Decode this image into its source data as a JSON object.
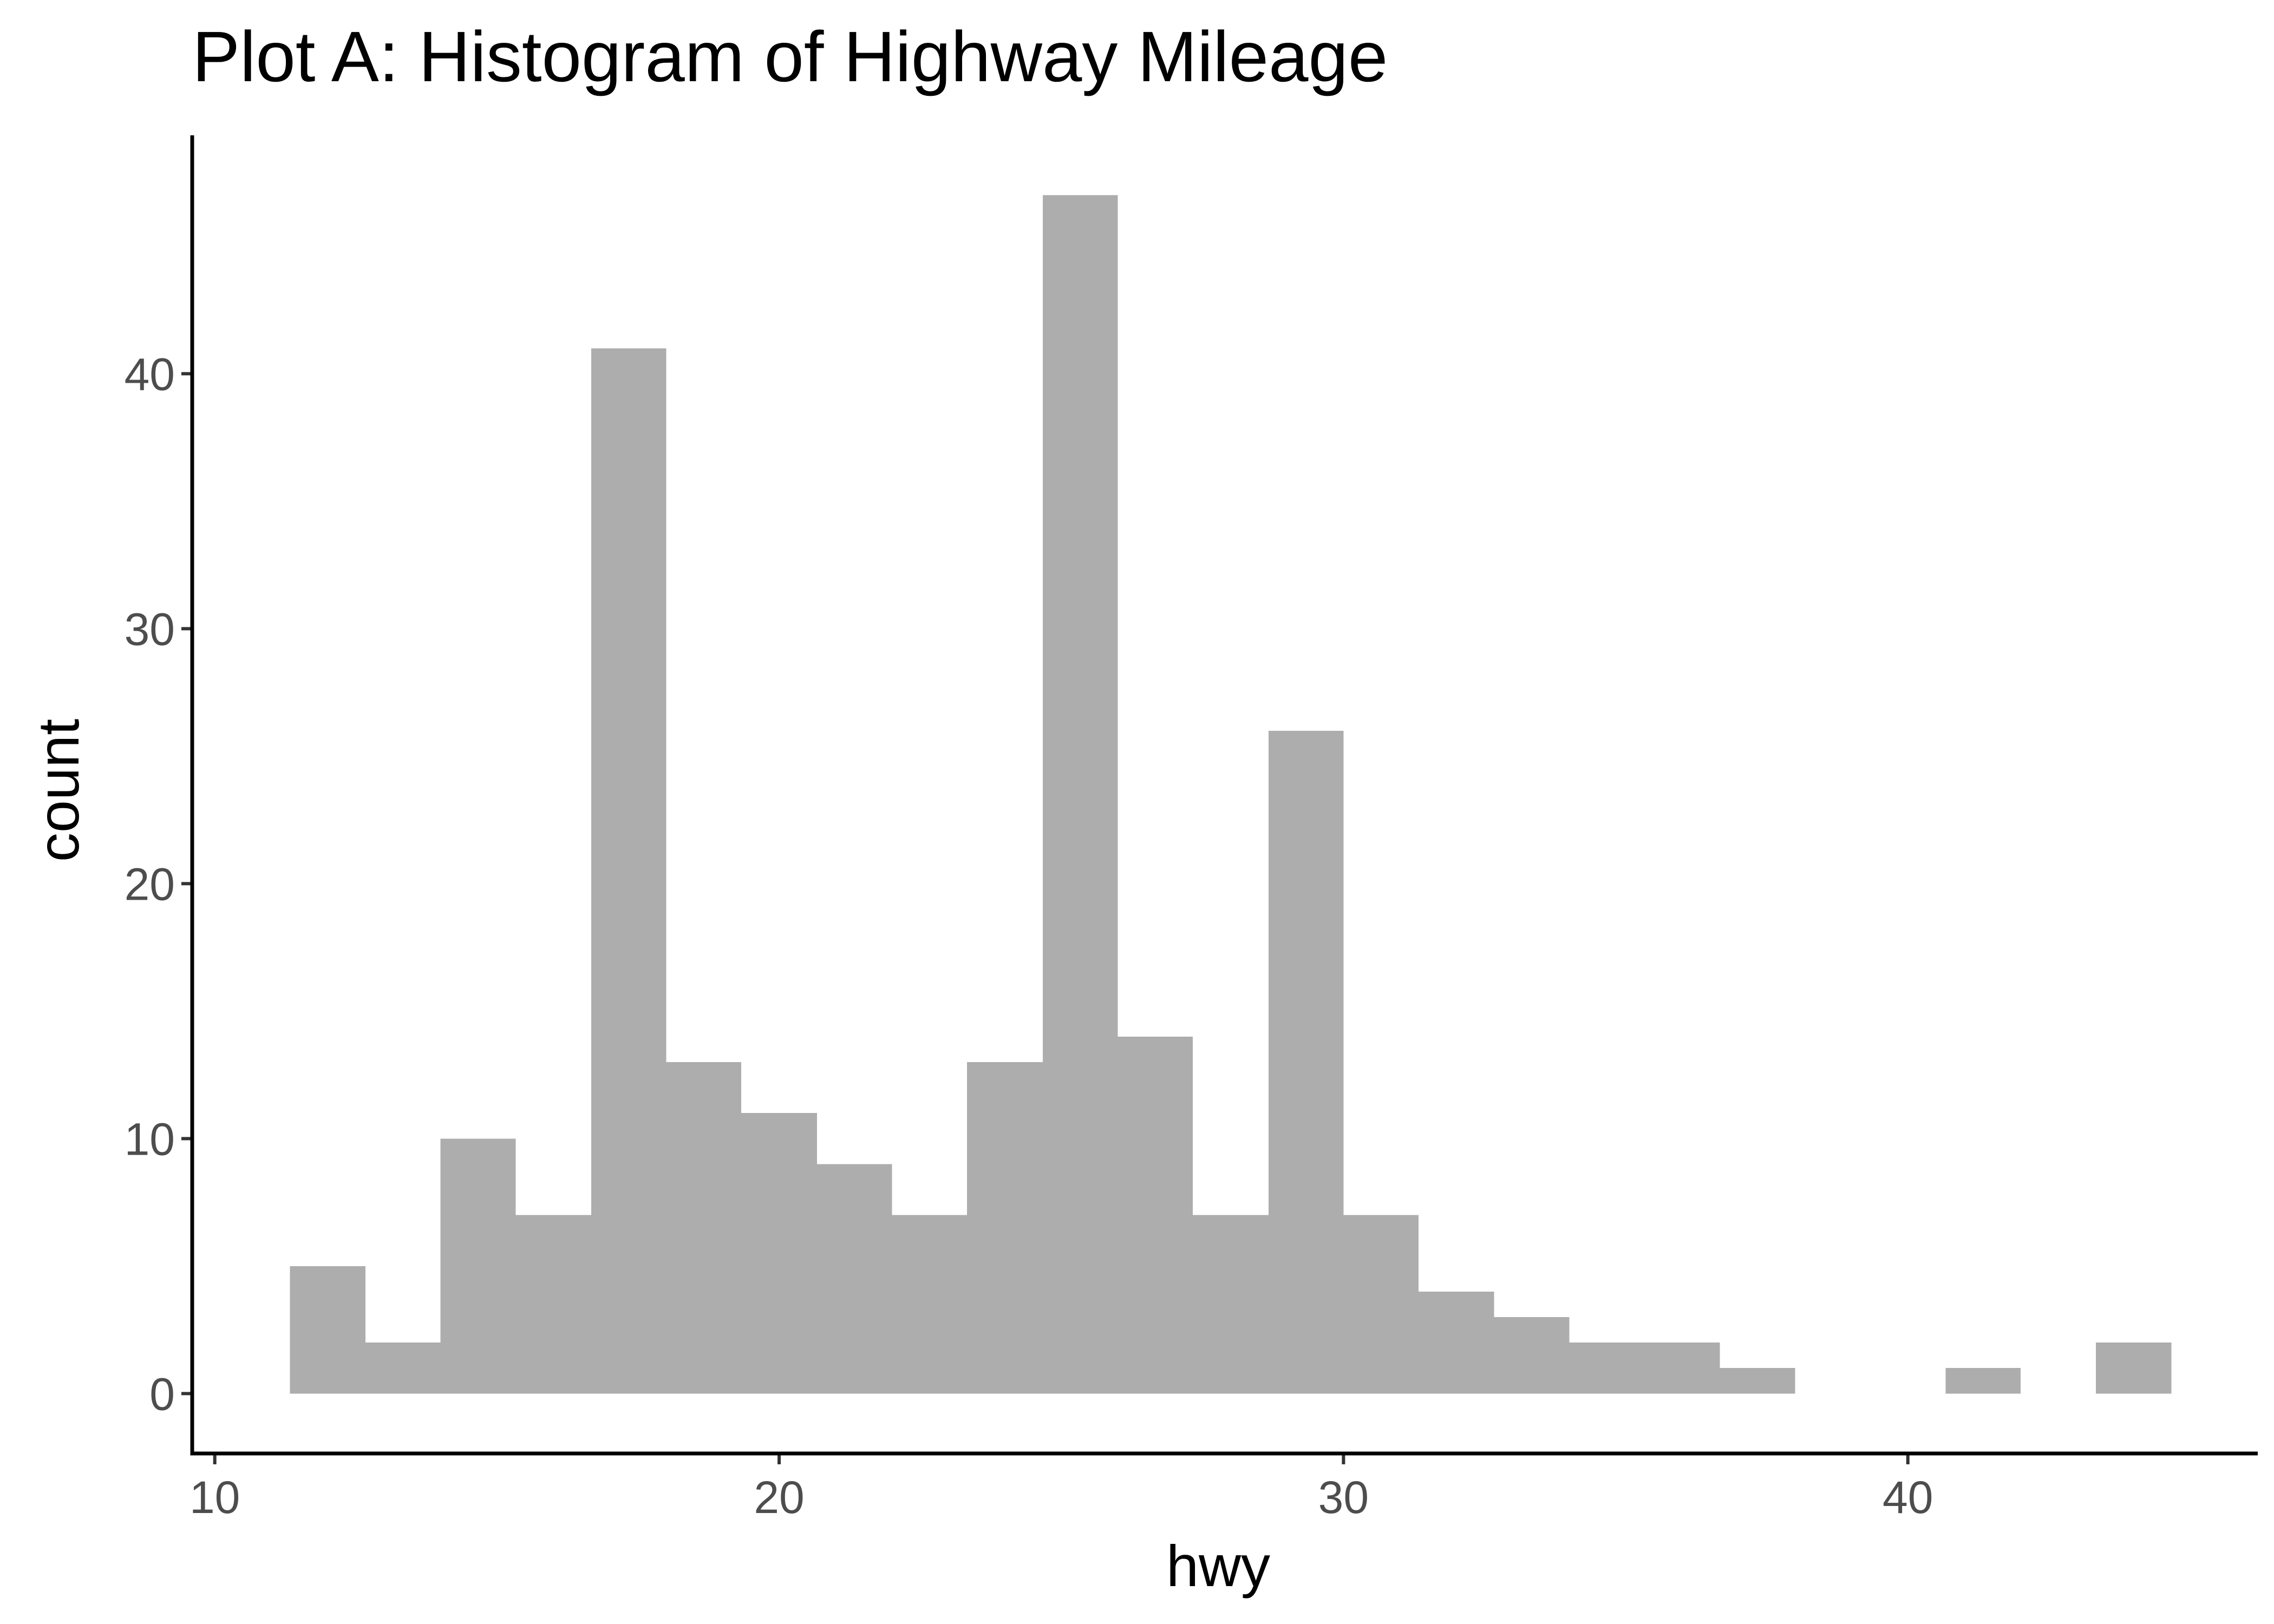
{
  "chart_data": {
    "type": "bar",
    "title": "Plot A: Histogram of Highway Mileage",
    "xlabel": "hwy",
    "ylabel": "count",
    "xlim": [
      9.6,
      46.2
    ],
    "ylim": [
      -2.35,
      49.35
    ],
    "x_ticks": [
      10,
      20,
      30,
      40
    ],
    "y_ticks": [
      0,
      10,
      20,
      30,
      40
    ],
    "bin_width": 1.333,
    "bins": [
      {
        "x0": 11.33,
        "x1": 12.67,
        "count": 5
      },
      {
        "x0": 12.67,
        "x1": 14.0,
        "count": 2
      },
      {
        "x0": 14.0,
        "x1": 15.33,
        "count": 10
      },
      {
        "x0": 15.33,
        "x1": 16.67,
        "count": 7
      },
      {
        "x0": 16.67,
        "x1": 18.0,
        "count": 41
      },
      {
        "x0": 18.0,
        "x1": 19.33,
        "count": 13
      },
      {
        "x0": 19.33,
        "x1": 20.67,
        "count": 11
      },
      {
        "x0": 20.67,
        "x1": 22.0,
        "count": 9
      },
      {
        "x0": 22.0,
        "x1": 23.33,
        "count": 7
      },
      {
        "x0": 23.33,
        "x1": 24.67,
        "count": 13
      },
      {
        "x0": 24.67,
        "x1": 26.0,
        "count": 47
      },
      {
        "x0": 26.0,
        "x1": 27.33,
        "count": 14
      },
      {
        "x0": 27.33,
        "x1": 28.67,
        "count": 7
      },
      {
        "x0": 28.67,
        "x1": 30.0,
        "count": 26
      },
      {
        "x0": 30.0,
        "x1": 31.33,
        "count": 7
      },
      {
        "x0": 31.33,
        "x1": 32.67,
        "count": 4
      },
      {
        "x0": 32.67,
        "x1": 34.0,
        "count": 3
      },
      {
        "x0": 34.0,
        "x1": 35.33,
        "count": 2
      },
      {
        "x0": 35.33,
        "x1": 36.67,
        "count": 2
      },
      {
        "x0": 36.67,
        "x1": 38.0,
        "count": 1
      },
      {
        "x0": 38.0,
        "x1": 39.33,
        "count": 0
      },
      {
        "x0": 39.33,
        "x1": 40.67,
        "count": 0
      },
      {
        "x0": 40.67,
        "x1": 42.0,
        "count": 1
      },
      {
        "x0": 42.0,
        "x1": 43.33,
        "count": 0
      },
      {
        "x0": 43.33,
        "x1": 44.67,
        "count": 2
      }
    ],
    "bar_color": "#adadad",
    "axis_color": "#000000",
    "tick_label_color": "#4d4d4d",
    "grid": false,
    "legend": "none"
  }
}
